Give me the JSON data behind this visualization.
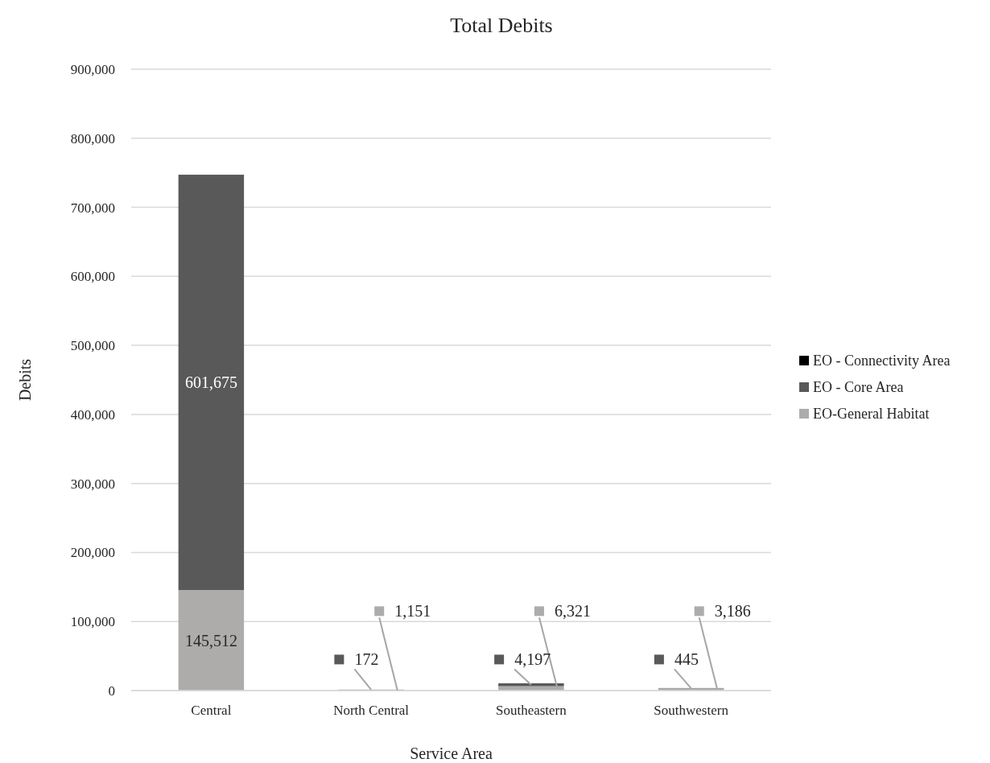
{
  "chart_data": {
    "type": "bar",
    "title": "Total Debits",
    "xlabel": "Service Area",
    "ylabel": "Debits",
    "categories": [
      "Central",
      "North Central",
      "Southeastern",
      "Southwestern"
    ],
    "stacked": true,
    "series": [
      {
        "name": "EO-General Habitat",
        "color": "#aeabab",
        "values": [
          145512,
          1151,
          6321,
          3186
        ],
        "value_labels": [
          "145,512",
          "1,151",
          "6,321",
          "3,186"
        ]
      },
      {
        "name": "EO - Core Area",
        "color": "#595959",
        "values": [
          601675,
          172,
          4197,
          445
        ],
        "value_labels": [
          "601,675",
          "172",
          "4,197",
          "445"
        ]
      },
      {
        "name": "EO - Connectivity Area",
        "color": "#000000",
        "values": [
          null,
          null,
          null,
          null
        ]
      }
    ],
    "ylim": [
      0,
      900000
    ],
    "yticks": [
      {
        "value": 0,
        "label": "0"
      },
      {
        "value": 100000,
        "label": "100,000"
      },
      {
        "value": 200000,
        "label": "200,000"
      },
      {
        "value": 300000,
        "label": "300,000"
      },
      {
        "value": 400000,
        "label": "400,000"
      },
      {
        "value": 500000,
        "label": "500,000"
      },
      {
        "value": 600000,
        "label": "600,000"
      },
      {
        "value": 700000,
        "label": "700,000"
      },
      {
        "value": 800000,
        "label": "800,000"
      },
      {
        "value": 900000,
        "label": "900,000"
      }
    ],
    "grid": "y",
    "legend": "right"
  }
}
